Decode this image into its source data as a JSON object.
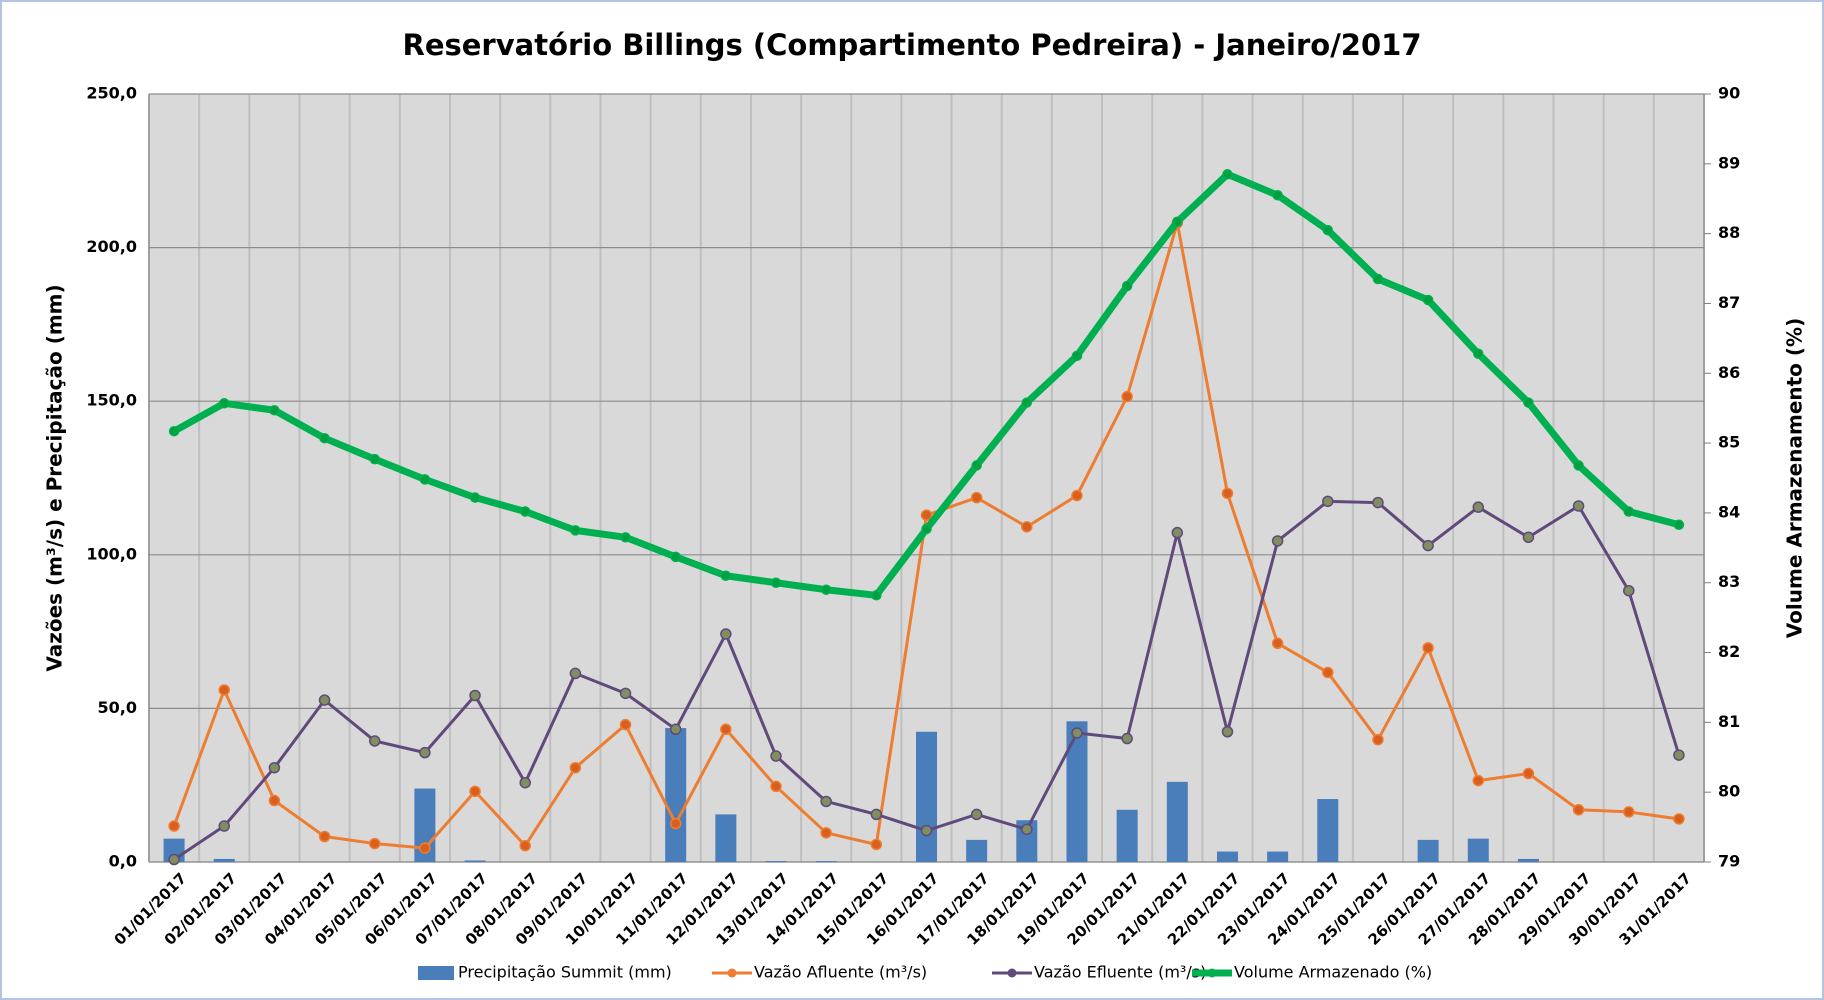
{
  "chart_data": {
    "type": "combo",
    "title": "Reservatório Billings (Compartimento Pedreira) - Janeiro/2017",
    "y_label": "Vazões (m³/s) e Precipitação (mm)",
    "y2_label": "Volume Armazenamento (%)",
    "categories": [
      "01/01/2017",
      "02/01/2017",
      "03/01/2017",
      "04/01/2017",
      "05/01/2017",
      "06/01/2017",
      "07/01/2017",
      "08/01/2017",
      "09/01/2017",
      "10/01/2017",
      "11/01/2017",
      "12/01/2017",
      "13/01/2017",
      "14/01/2017",
      "15/01/2017",
      "16/01/2017",
      "17/01/2017",
      "18/01/2017",
      "19/01/2017",
      "20/01/2017",
      "21/01/2017",
      "22/01/2017",
      "23/01/2017",
      "24/01/2017",
      "25/01/2017",
      "26/01/2017",
      "27/01/2017",
      "28/01/2017",
      "29/01/2017",
      "30/01/2017",
      "31/01/2017"
    ],
    "ylim": [
      0,
      250
    ],
    "yticks": [
      {
        "value": 0,
        "label": "0,0"
      },
      {
        "value": 50,
        "label": "50,0"
      },
      {
        "value": 100,
        "label": "100,0"
      },
      {
        "value": 150,
        "label": "150,0"
      },
      {
        "value": 200,
        "label": "200,0"
      },
      {
        "value": 250,
        "label": "250,0"
      }
    ],
    "y2lim": [
      79,
      90
    ],
    "y2ticks": [
      79,
      80,
      81,
      82,
      83,
      84,
      85,
      86,
      87,
      88,
      89,
      90
    ],
    "grid": true,
    "legend": "bottom",
    "series": [
      {
        "name": "Precipitação Summit (mm)",
        "type": "bar",
        "color": "#4a7ebb",
        "values": [
          7.6,
          1,
          0,
          0,
          0,
          23.9,
          0.5,
          0,
          0,
          0,
          43.6,
          15.5,
          0.3,
          0.3,
          0,
          42.4,
          7.2,
          13.6,
          45.8,
          17,
          26.1,
          3.4,
          3.4,
          20.5,
          0,
          7.2,
          7.6,
          1,
          0,
          0,
          0
        ]
      },
      {
        "name": "Vazão Afluente (m³/s)",
        "type": "line",
        "color": "#ed7d31",
        "values": [
          11.7,
          56,
          20,
          8.3,
          6,
          4.5,
          23,
          5.3,
          30.7,
          44.7,
          12.5,
          43.2,
          24.6,
          9.5,
          5.7,
          112.9,
          118.6,
          109.1,
          119.3,
          151.5,
          208,
          120,
          71.2,
          61.7,
          39.8,
          69.7,
          26.5,
          28.8,
          17,
          16.3,
          14
        ]
      },
      {
        "name": "Vazão Efluente (m³/s)",
        "type": "line",
        "color": "#604a7b",
        "values": [
          0.8,
          11.7,
          30.7,
          52.7,
          39.4,
          35.6,
          54.2,
          25.8,
          61.4,
          54.9,
          43.2,
          74.2,
          34.5,
          19.7,
          15.5,
          10.2,
          15.5,
          10.6,
          42,
          40.2,
          107.2,
          42.4,
          104.5,
          117.4,
          117,
          103,
          115.5,
          105.7,
          115.9,
          88.3,
          34.8
        ]
      },
      {
        "name": "Volume Armazenado (%)",
        "type": "line",
        "color": "#00b050",
        "axis": "y2",
        "values": [
          85.17,
          85.57,
          85.47,
          85.07,
          84.77,
          84.48,
          84.22,
          84.02,
          83.75,
          83.65,
          83.37,
          83.1,
          83.0,
          82.9,
          82.82,
          83.77,
          84.68,
          85.58,
          86.25,
          87.25,
          88.17,
          88.85,
          88.55,
          88.05,
          87.35,
          87.05,
          86.28,
          85.58,
          84.68,
          84.02,
          83.83
        ]
      }
    ]
  }
}
